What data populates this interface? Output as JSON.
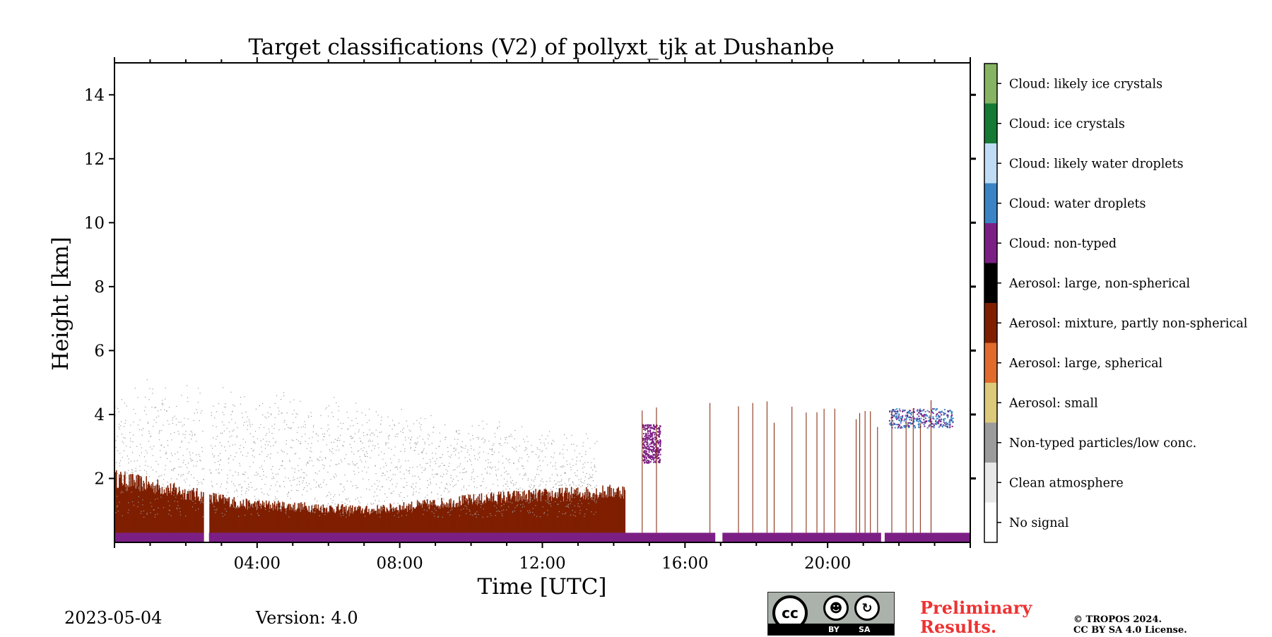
{
  "chart_data": {
    "type": "heatmap",
    "title": "Target classifications (V2) of pollyxt_tjk at Dushanbe",
    "xlabel": "Time [UTC]",
    "ylabel": "Height [km]",
    "xlim": [
      0,
      24
    ],
    "ylim": [
      0,
      15
    ],
    "x_ticks": [
      4,
      8,
      12,
      16,
      20
    ],
    "x_tick_labels": [
      "04:00",
      "08:00",
      "12:00",
      "16:00",
      "20:00"
    ],
    "y_ticks": [
      2,
      4,
      6,
      8,
      10,
      12,
      14
    ],
    "y_tick_labels": [
      "2",
      "4",
      "6",
      "8",
      "10",
      "12",
      "14"
    ],
    "classes": [
      {
        "code": 0,
        "label": "No signal",
        "color": "#ffffff"
      },
      {
        "code": 1,
        "label": "Clean atmosphere",
        "color": "#e8e8e8"
      },
      {
        "code": 2,
        "label": "Non-typed particles/low conc.",
        "color": "#9b9b9b"
      },
      {
        "code": 3,
        "label": "Aerosol: small",
        "color": "#dcc97a"
      },
      {
        "code": 4,
        "label": "Aerosol: large, spherical",
        "color": "#e06b2c"
      },
      {
        "code": 5,
        "label": "Aerosol: mixture, partly non-spherical",
        "color": "#7f1f00"
      },
      {
        "code": 6,
        "label": "Aerosol: large, non-spherical",
        "color": "#000000"
      },
      {
        "code": 7,
        "label": "Cloud: non-typed",
        "color": "#7c1f85"
      },
      {
        "code": 8,
        "label": "Cloud: water droplets",
        "color": "#3a84c5"
      },
      {
        "code": 9,
        "label": "Cloud: likely water droplets",
        "color": "#bfdcf4"
      },
      {
        "code": 10,
        "label": "Cloud: ice crystals",
        "color": "#147a34"
      },
      {
        "code": 11,
        "label": "Cloud: likely ice crystals",
        "color": "#86b462"
      }
    ],
    "regions": [
      {
        "class": "Aerosol: mixture, partly non-spherical",
        "x": [
          0.0,
          14.3
        ],
        "height_top_km": [
          2.0,
          1.2,
          1.0,
          1.4,
          1.6
        ]
      },
      {
        "class": "Non-typed particles/low conc.",
        "x": [
          0.0,
          13.5
        ],
        "height_top_km": [
          4.5,
          4.5,
          4.0,
          3.5,
          3.0
        ]
      },
      {
        "class": "Cloud: non-typed",
        "x": [
          0.0,
          24.0
        ],
        "height_km": [
          0.0,
          0.3
        ]
      },
      {
        "class": "Cloud: non-typed",
        "x": [
          14.8,
          15.3
        ],
        "height_km": [
          2.5,
          3.7
        ]
      },
      {
        "class": "Cloud: water droplets",
        "x": [
          21.7,
          23.5
        ],
        "height_km": [
          3.6,
          4.2
        ]
      }
    ],
    "gaps_hours": [
      [
        2.5,
        2.65
      ],
      [
        16.85,
        17.05
      ],
      [
        21.5,
        21.6
      ]
    ]
  },
  "footer": {
    "date": "2023-05-04",
    "version": "Version: 4.0",
    "preliminary_line1": "Preliminary",
    "preliminary_line2": "Results.",
    "copyright_line1": "© TROPOS 2024.",
    "copyright_line2": "CC BY SA 4.0 License.",
    "license_badge_labels": [
      "cc",
      "BY",
      "SA"
    ]
  }
}
